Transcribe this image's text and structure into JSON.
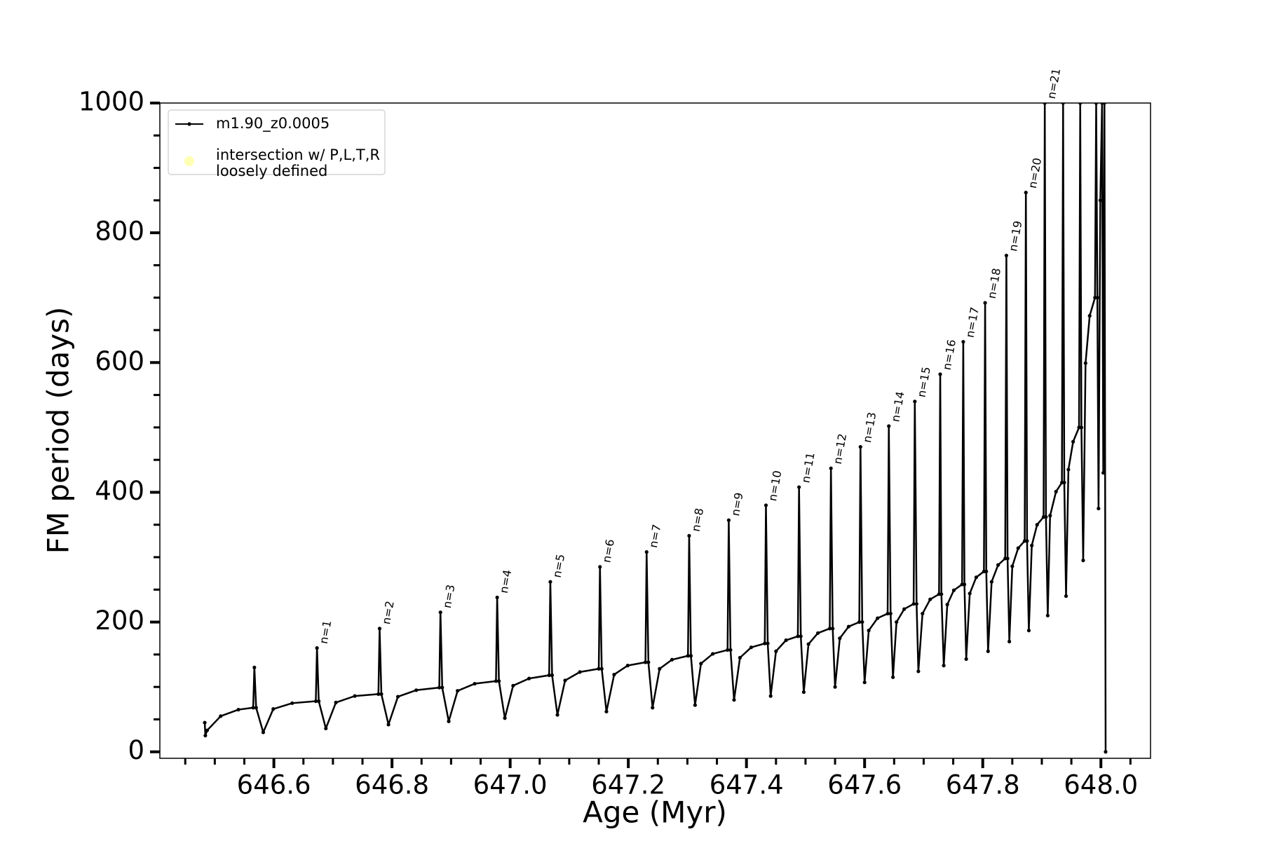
{
  "chart_data": {
    "type": "line",
    "xlabel": "Age (Myr)",
    "ylabel": "FM period (days)",
    "xlim": [
      646.407,
      648.084
    ],
    "ylim": [
      -10,
      1000
    ],
    "xticks": [
      646.6,
      646.8,
      {
        "value": 647,
        "label": "647.0"
      },
      647.2,
      647.4,
      647.6,
      647.8,
      {
        "value": 648,
        "label": "648.0"
      }
    ],
    "xminorticks": [
      646.45,
      646.5,
      646.55,
      646.65,
      646.7,
      646.75,
      646.85,
      646.9,
      646.95,
      647.05,
      647.1,
      647.15,
      647.25,
      647.3,
      647.35,
      647.45,
      647.5,
      647.55,
      647.65,
      647.7,
      647.75,
      647.85,
      647.9,
      647.95,
      648.05
    ],
    "yticks": [
      0,
      200,
      400,
      600,
      800,
      1000
    ],
    "yminorticks": [
      50,
      100,
      150,
      250,
      300,
      350,
      450,
      500,
      550,
      650,
      700,
      750,
      850,
      900,
      950
    ],
    "legend": "upper left",
    "series": [
      {
        "name": "m1.90_z0.0005",
        "color": "#000000",
        "x": [
          646.483,
          646.484,
          646.487,
          646.51,
          646.54,
          646.565,
          646.567,
          646.57,
          646.582,
          646.599,
          646.631,
          646.671,
          646.673,
          646.676,
          646.688,
          646.705,
          646.737,
          646.777,
          646.779,
          646.782,
          646.794,
          646.81,
          646.841,
          646.88,
          646.882,
          646.885,
          646.896,
          646.911,
          646.94,
          646.976,
          646.978,
          646.981,
          646.991,
          647.005,
          647.032,
          647.066,
          647.068,
          647.071,
          647.08,
          647.093,
          647.118,
          647.15,
          647.152,
          647.155,
          647.163,
          647.176,
          647.199,
          647.229,
          647.231,
          647.234,
          647.241,
          647.253,
          647.274,
          647.301,
          647.303,
          647.306,
          647.313,
          647.323,
          647.343,
          647.368,
          647.37,
          647.373,
          647.379,
          647.389,
          647.408,
          647.431,
          647.433,
          647.436,
          647.441,
          647.45,
          647.467,
          647.487,
          647.489,
          647.492,
          647.497,
          647.505,
          647.521,
          647.541,
          647.543,
          647.546,
          647.55,
          647.558,
          647.573,
          647.591,
          647.593,
          647.596,
          647.6,
          647.607,
          647.622,
          647.639,
          647.641,
          647.644,
          647.648,
          647.654,
          647.667,
          647.683,
          647.685,
          647.688,
          647.691,
          647.698,
          647.711,
          647.726,
          647.728,
          647.73,
          647.734,
          647.74,
          647.751,
          647.765,
          647.767,
          647.769,
          647.772,
          647.778,
          647.789,
          647.802,
          647.804,
          647.806,
          647.809,
          647.815,
          647.826,
          647.838,
          647.84,
          647.842,
          647.845,
          647.85,
          647.86,
          647.871,
          647.873,
          647.875,
          647.878,
          647.883,
          647.892,
          647.903,
          647.905,
          647.907,
          647.91,
          647.914,
          647.924,
          647.934,
          647.936,
          647.938,
          647.941,
          647.945,
          647.953,
          647.963,
          647.965,
          647.967,
          647.97,
          647.974,
          647.981,
          647.99,
          647.992,
          647.994,
          647.996,
          647.999,
          648.002,
          648.004,
          648.006,
          648.008
        ],
        "values": [
          45,
          25,
          33,
          55,
          65,
          68,
          130,
          68,
          30,
          66,
          75,
          78,
          160,
          78,
          36,
          76,
          86,
          89,
          190,
          89,
          42,
          85,
          95,
          99,
          215,
          99,
          47,
          94,
          105,
          109,
          238,
          109,
          52,
          102,
          113,
          118,
          262,
          118,
          57,
          110,
          123,
          128,
          285,
          128,
          62,
          119,
          133,
          138,
          308,
          138,
          68,
          128,
          142,
          148,
          333,
          148,
          72,
          136,
          151,
          157,
          357,
          157,
          80,
          145,
          161,
          167,
          380,
          167,
          86,
          155,
          172,
          178,
          408,
          178,
          92,
          166,
          183,
          190,
          437,
          190,
          100,
          175,
          193,
          200,
          470,
          200,
          107,
          187,
          206,
          213,
          502,
          213,
          115,
          200,
          220,
          228,
          540,
          228,
          124,
          213,
          235,
          243,
          582,
          243,
          133,
          227,
          249,
          258,
          632,
          258,
          143,
          244,
          269,
          278,
          692,
          278,
          155,
          262,
          288,
          298,
          765,
          298,
          170,
          286,
          314,
          325,
          862,
          325,
          187,
          318,
          350,
          362,
          1000,
          362,
          210,
          364,
          401,
          415,
          1000,
          415,
          240,
          435,
          478,
          500,
          1000,
          500,
          295,
          599,
          672,
          700,
          1000,
          700,
          375,
          850,
          1000,
          430,
          1000,
          0
        ]
      },
      {
        "name": "intersection w/ P,L,T,R\nloosely defined",
        "color": "#ffffb3",
        "x": [],
        "values": []
      }
    ],
    "annotations": [
      {
        "text": "n=1",
        "x": 646.673,
        "y": 160
      },
      {
        "text": "n=2",
        "x": 646.779,
        "y": 190
      },
      {
        "text": "n=3",
        "x": 646.882,
        "y": 215
      },
      {
        "text": "n=4",
        "x": 646.978,
        "y": 238
      },
      {
        "text": "n=5",
        "x": 647.068,
        "y": 262
      },
      {
        "text": "n=6",
        "x": 647.152,
        "y": 285
      },
      {
        "text": "n=7",
        "x": 647.231,
        "y": 308
      },
      {
        "text": "n=8",
        "x": 647.303,
        "y": 333
      },
      {
        "text": "n=9",
        "x": 647.37,
        "y": 357
      },
      {
        "text": "n=10",
        "x": 647.433,
        "y": 380
      },
      {
        "text": "n=11",
        "x": 647.489,
        "y": 408
      },
      {
        "text": "n=12",
        "x": 647.543,
        "y": 437
      },
      {
        "text": "n=13",
        "x": 647.593,
        "y": 470
      },
      {
        "text": "n=14",
        "x": 647.641,
        "y": 502
      },
      {
        "text": "n=15",
        "x": 647.685,
        "y": 540
      },
      {
        "text": "n=16",
        "x": 647.728,
        "y": 582
      },
      {
        "text": "n=17",
        "x": 647.767,
        "y": 632
      },
      {
        "text": "n=18",
        "x": 647.804,
        "y": 692
      },
      {
        "text": "n=19",
        "x": 647.84,
        "y": 765
      },
      {
        "text": "n=20",
        "x": 647.873,
        "y": 862
      },
      {
        "text": "n=21",
        "x": 647.905,
        "y": 1000
      }
    ]
  }
}
